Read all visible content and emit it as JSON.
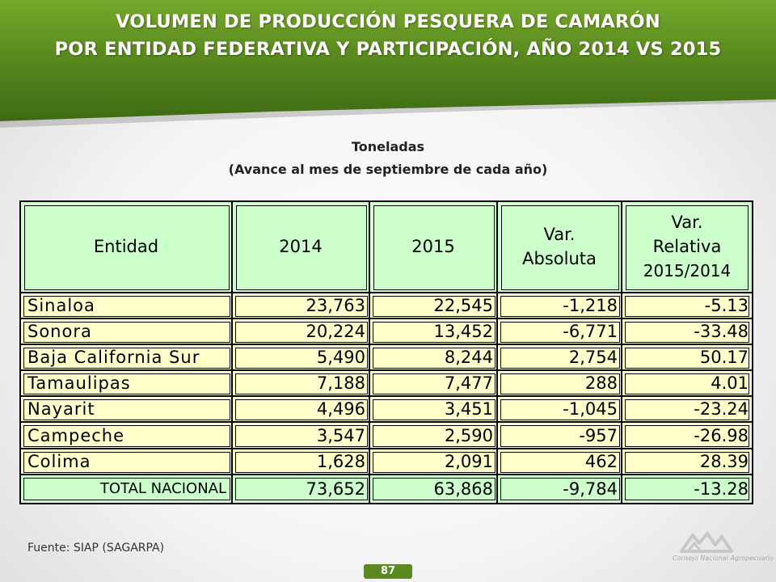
{
  "title": {
    "line1": "VOLUMEN DE PRODUCCIÓN PESQUERA  DE CAMARÓN",
    "line2": "POR ENTIDAD FEDERATIVA Y PARTICIPACIÓN, AÑO 2014 VS 2015"
  },
  "subtitle": {
    "line1": "Toneladas",
    "line2": "(Avance al mes de septiembre de cada año)"
  },
  "table": {
    "headers": {
      "entidad": "Entidad",
      "y2014": "2014",
      "y2015": "2015",
      "var_abs_1": "Var.",
      "var_abs_2": "Absoluta",
      "var_rel_1": "Var.",
      "var_rel_2": "Relativa",
      "var_rel_3": "2015/2014"
    },
    "rows": [
      {
        "entidad": "Sinaloa",
        "y2014": "23,763",
        "y2015": "22,545",
        "var_abs": "-1,218",
        "var_rel": "-5.13"
      },
      {
        "entidad": "Sonora",
        "y2014": "20,224",
        "y2015": "13,452",
        "var_abs": "-6,771",
        "var_rel": "-33.48"
      },
      {
        "entidad": "Baja California Sur",
        "y2014": "5,490",
        "y2015": "8,244",
        "var_abs": "2,754",
        "var_rel": "50.17"
      },
      {
        "entidad": "Tamaulipas",
        "y2014": "7,188",
        "y2015": "7,477",
        "var_abs": "288",
        "var_rel": "4.01"
      },
      {
        "entidad": "Nayarit",
        "y2014": "4,496",
        "y2015": "3,451",
        "var_abs": "-1,045",
        "var_rel": "-23.24"
      },
      {
        "entidad": "Campeche",
        "y2014": "3,547",
        "y2015": "2,590",
        "var_abs": "-957",
        "var_rel": "-26.98"
      },
      {
        "entidad": "Colima",
        "y2014": "1,628",
        "y2015": "2,091",
        "var_abs": "462",
        "var_rel": "28.39"
      }
    ],
    "total": {
      "entidad": "TOTAL NACIONAL",
      "y2014": "73,652",
      "y2015": "63,868",
      "var_abs": "-9,784",
      "var_rel": "-13.28"
    }
  },
  "source": "Fuente: SIAP (SAGARPA)",
  "page_number": "87",
  "logo": {
    "icon": "cna-mountains-logo",
    "text": "Consejo Nacional Agropecuario"
  },
  "colors": {
    "header_green": "#5a8a1f",
    "header_fill": "#ccffcc",
    "row_fill": "#ffffcc"
  }
}
